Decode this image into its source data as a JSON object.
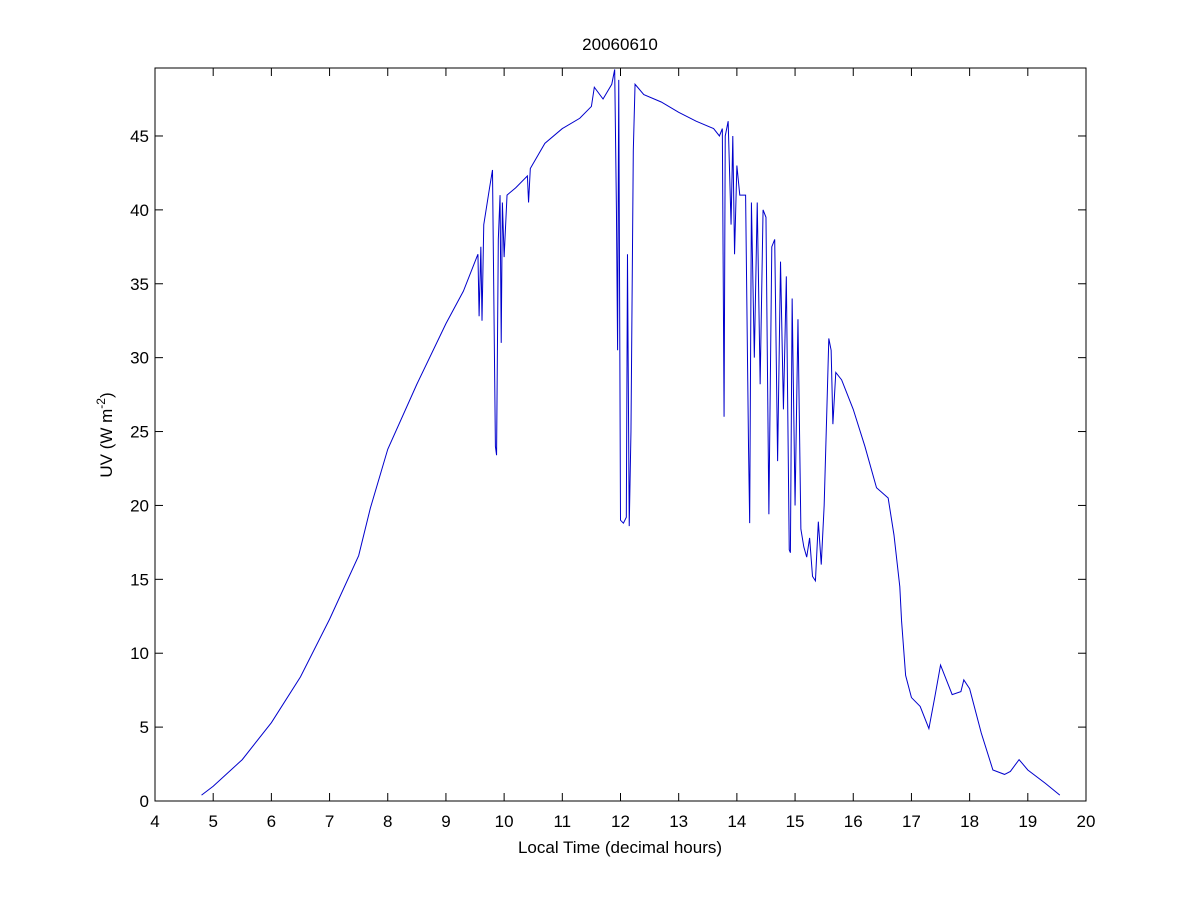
{
  "chart_data": {
    "type": "line",
    "title": "20060610",
    "xlabel": "Local Time (decimal hours)",
    "ylabel": [
      "UV (W m",
      "-2",
      ")"
    ],
    "xlim": [
      4,
      20
    ],
    "ylim": [
      0,
      49.6
    ],
    "xticks": [
      4,
      5,
      6,
      7,
      8,
      9,
      10,
      11,
      12,
      13,
      14,
      15,
      16,
      17,
      18,
      19,
      20
    ],
    "yticks": [
      0,
      5,
      10,
      15,
      20,
      25,
      30,
      35,
      40,
      45
    ],
    "grid": false,
    "x": [
      4.8,
      5,
      5.5,
      6,
      6.5,
      7,
      7.5,
      7.7,
      8,
      8.5,
      9,
      9.3,
      9.5,
      9.55,
      9.57,
      9.6,
      9.62,
      9.65,
      9.75,
      9.8,
      9.85,
      9.87,
      9.9,
      9.93,
      9.95,
      9.97,
      10.0,
      10.05,
      10.2,
      10.4,
      10.42,
      10.45,
      10.7,
      11,
      11.3,
      11.5,
      11.55,
      11.7,
      11.85,
      11.9,
      11.93,
      11.95,
      11.97,
      12.0,
      12.05,
      12.1,
      12.12,
      12.15,
      12.18,
      12.22,
      12.25,
      12.4,
      12.7,
      13,
      13.3,
      13.6,
      13.7,
      13.75,
      13.78,
      13.8,
      13.85,
      13.9,
      13.93,
      13.96,
      14.0,
      14.05,
      14.15,
      14.2,
      14.22,
      14.25,
      14.3,
      14.35,
      14.4,
      14.45,
      14.5,
      14.55,
      14.6,
      14.65,
      14.7,
      14.75,
      14.8,
      14.85,
      14.9,
      14.92,
      14.95,
      15.0,
      15.05,
      15.1,
      15.15,
      15.2,
      15.25,
      15.3,
      15.35,
      15.4,
      15.45,
      15.5,
      15.55,
      15.58,
      15.62,
      15.65,
      15.7,
      15.8,
      16.0,
      16.2,
      16.4,
      16.6,
      16.7,
      16.8,
      16.83,
      16.9,
      17.0,
      17.15,
      17.3,
      17.4,
      17.5,
      17.6,
      17.7,
      17.85,
      17.9,
      18.0,
      18.2,
      18.4,
      18.6,
      18.7,
      18.85,
      19.0,
      19.3,
      19.55
    ],
    "series": [
      {
        "name": "UV",
        "color": "#0000cc",
        "values": [
          0.4,
          1.0,
          2.8,
          5.3,
          8.4,
          12.3,
          16.6,
          19.8,
          23.8,
          28.2,
          32.3,
          34.5,
          36.5,
          37.0,
          32.8,
          37.5,
          32.5,
          39.0,
          41.5,
          42.7,
          24.0,
          23.4,
          38.0,
          41.0,
          31.0,
          40.5,
          36.8,
          41.0,
          41.5,
          42.3,
          40.5,
          42.8,
          44.5,
          45.5,
          46.2,
          47.0,
          48.3,
          47.5,
          48.5,
          49.5,
          40.0,
          30.5,
          48.8,
          19.0,
          18.8,
          19.2,
          37.0,
          18.6,
          25.0,
          44.0,
          48.5,
          47.8,
          47.3,
          46.6,
          46.0,
          45.5,
          45.0,
          45.5,
          26.0,
          45.0,
          46.0,
          39.0,
          45.0,
          37.0,
          43.0,
          41.0,
          41.0,
          24.0,
          18.8,
          40.5,
          30.0,
          40.5,
          28.2,
          40.0,
          39.5,
          19.4,
          37.5,
          38.0,
          23.0,
          36.5,
          26.5,
          35.5,
          17.0,
          16.8,
          34.0,
          20.0,
          32.6,
          18.4,
          17.2,
          16.5,
          17.8,
          15.2,
          14.9,
          18.9,
          16.0,
          20.0,
          27.0,
          31.3,
          30.5,
          25.5,
          29.0,
          28.5,
          26.5,
          24.0,
          21.2,
          20.5,
          18.0,
          14.5,
          12.2,
          8.5,
          7.0,
          6.4,
          4.9,
          7.0,
          9.2,
          8.2,
          7.2,
          7.4,
          8.2,
          7.6,
          4.6,
          2.1,
          1.8,
          2.0,
          2.8,
          2.1,
          1.2,
          0.4
        ]
      }
    ]
  }
}
